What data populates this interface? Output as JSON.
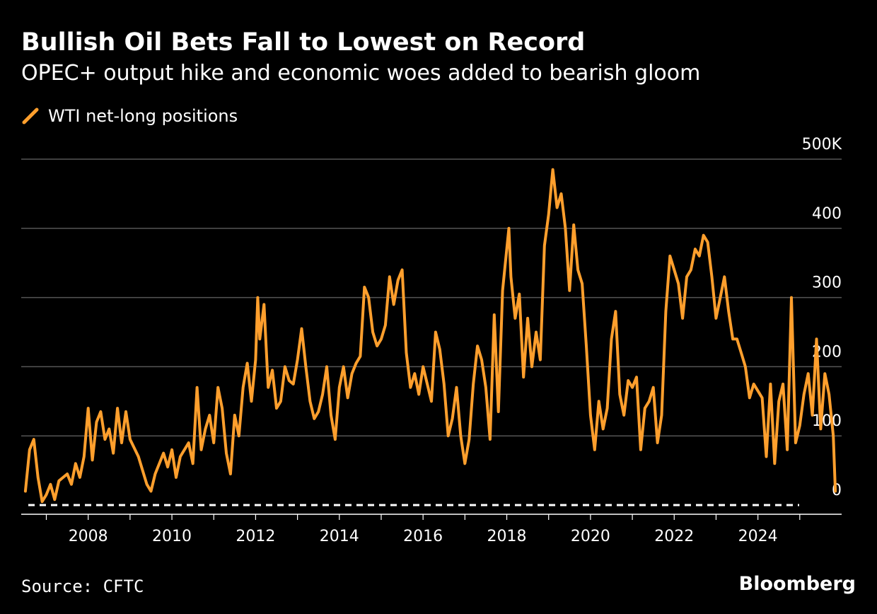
{
  "title": "Bullish Oil Bets Fall to Lowest on Record",
  "subtitle": "OPEC+ output hike and economic woes added to bearish gloom",
  "source": "Source: CFTC",
  "brand": "Bloomberg",
  "colors": {
    "series": "#ff9f2d",
    "background": "#000000",
    "grid": "#555555",
    "text": "#ffffff",
    "baseline": "#ffffff"
  },
  "legend_icon": "diagonal-line-swatch",
  "chart_data": {
    "type": "line",
    "title": "Bullish Oil Bets Fall to Lowest on Record",
    "subtitle": "OPEC+ output hike and economic woes added to bearish gloom",
    "xlabel": "",
    "ylabel": "",
    "xlim": [
      2006.4,
      2026.0
    ],
    "ylim": [
      0,
      500
    ],
    "y_unit": "K",
    "x_ticks": [
      2008,
      2010,
      2012,
      2014,
      2016,
      2018,
      2020,
      2022,
      2024
    ],
    "y_ticks": [
      {
        "value": 0,
        "label": "0"
      },
      {
        "value": 100,
        "label": "100"
      },
      {
        "value": 200,
        "label": "200"
      },
      {
        "value": 300,
        "label": "300"
      },
      {
        "value": 400,
        "label": "400"
      },
      {
        "value": 500,
        "label": "500K"
      }
    ],
    "grid": true,
    "legend_position": "top-left",
    "reference_line": {
      "value": 0,
      "style": "dashed"
    },
    "series": [
      {
        "name": "WTI net-long positions",
        "color": "#ff9f2d",
        "points": [
          [
            2006.5,
            20
          ],
          [
            2006.6,
            80
          ],
          [
            2006.7,
            95
          ],
          [
            2006.8,
            40
          ],
          [
            2006.9,
            5
          ],
          [
            2007.0,
            15
          ],
          [
            2007.1,
            30
          ],
          [
            2007.2,
            8
          ],
          [
            2007.3,
            35
          ],
          [
            2007.5,
            45
          ],
          [
            2007.6,
            30
          ],
          [
            2007.7,
            60
          ],
          [
            2007.8,
            40
          ],
          [
            2007.9,
            70
          ],
          [
            2008.0,
            140
          ],
          [
            2008.1,
            65
          ],
          [
            2008.2,
            120
          ],
          [
            2008.3,
            135
          ],
          [
            2008.4,
            95
          ],
          [
            2008.5,
            110
          ],
          [
            2008.6,
            75
          ],
          [
            2008.7,
            140
          ],
          [
            2008.8,
            90
          ],
          [
            2008.9,
            135
          ],
          [
            2009.0,
            95
          ],
          [
            2009.2,
            70
          ],
          [
            2009.4,
            30
          ],
          [
            2009.5,
            20
          ],
          [
            2009.6,
            45
          ],
          [
            2009.8,
            75
          ],
          [
            2009.9,
            55
          ],
          [
            2010.0,
            80
          ],
          [
            2010.1,
            40
          ],
          [
            2010.2,
            70
          ],
          [
            2010.4,
            90
          ],
          [
            2010.5,
            60
          ],
          [
            2010.6,
            170
          ],
          [
            2010.7,
            80
          ],
          [
            2010.8,
            110
          ],
          [
            2010.9,
            130
          ],
          [
            2011.0,
            90
          ],
          [
            2011.1,
            170
          ],
          [
            2011.2,
            140
          ],
          [
            2011.3,
            75
          ],
          [
            2011.4,
            45
          ],
          [
            2011.5,
            130
          ],
          [
            2011.6,
            100
          ],
          [
            2011.7,
            170
          ],
          [
            2011.8,
            205
          ],
          [
            2011.9,
            150
          ],
          [
            2012.0,
            210
          ],
          [
            2012.05,
            300
          ],
          [
            2012.1,
            240
          ],
          [
            2012.2,
            290
          ],
          [
            2012.3,
            170
          ],
          [
            2012.4,
            195
          ],
          [
            2012.5,
            140
          ],
          [
            2012.6,
            150
          ],
          [
            2012.7,
            200
          ],
          [
            2012.8,
            180
          ],
          [
            2012.9,
            175
          ],
          [
            2013.0,
            210
          ],
          [
            2013.1,
            255
          ],
          [
            2013.2,
            200
          ],
          [
            2013.3,
            150
          ],
          [
            2013.4,
            125
          ],
          [
            2013.5,
            135
          ],
          [
            2013.6,
            160
          ],
          [
            2013.7,
            200
          ],
          [
            2013.8,
            130
          ],
          [
            2013.9,
            95
          ],
          [
            2014.0,
            170
          ],
          [
            2014.1,
            200
          ],
          [
            2014.2,
            155
          ],
          [
            2014.3,
            190
          ],
          [
            2014.4,
            205
          ],
          [
            2014.5,
            215
          ],
          [
            2014.6,
            315
          ],
          [
            2014.7,
            300
          ],
          [
            2014.8,
            250
          ],
          [
            2014.9,
            230
          ],
          [
            2015.0,
            240
          ],
          [
            2015.1,
            260
          ],
          [
            2015.2,
            330
          ],
          [
            2015.3,
            290
          ],
          [
            2015.4,
            325
          ],
          [
            2015.5,
            340
          ],
          [
            2015.6,
            220
          ],
          [
            2015.7,
            170
          ],
          [
            2015.8,
            190
          ],
          [
            2015.9,
            160
          ],
          [
            2016.0,
            200
          ],
          [
            2016.1,
            175
          ],
          [
            2016.2,
            150
          ],
          [
            2016.3,
            250
          ],
          [
            2016.4,
            225
          ],
          [
            2016.5,
            175
          ],
          [
            2016.6,
            100
          ],
          [
            2016.7,
            125
          ],
          [
            2016.8,
            170
          ],
          [
            2016.9,
            100
          ],
          [
            2017.0,
            60
          ],
          [
            2017.1,
            95
          ],
          [
            2017.2,
            175
          ],
          [
            2017.3,
            230
          ],
          [
            2017.4,
            210
          ],
          [
            2017.5,
            170
          ],
          [
            2017.6,
            95
          ],
          [
            2017.7,
            275
          ],
          [
            2017.8,
            135
          ],
          [
            2017.9,
            310
          ],
          [
            2018.0,
            370
          ],
          [
            2018.05,
            400
          ],
          [
            2018.1,
            330
          ],
          [
            2018.2,
            270
          ],
          [
            2018.3,
            305
          ],
          [
            2018.4,
            185
          ],
          [
            2018.5,
            270
          ],
          [
            2018.6,
            200
          ],
          [
            2018.7,
            250
          ],
          [
            2018.8,
            210
          ],
          [
            2018.9,
            375
          ],
          [
            2019.0,
            420
          ],
          [
            2019.1,
            485
          ],
          [
            2019.2,
            430
          ],
          [
            2019.3,
            450
          ],
          [
            2019.4,
            400
          ],
          [
            2019.5,
            310
          ],
          [
            2019.6,
            405
          ],
          [
            2019.7,
            340
          ],
          [
            2019.8,
            320
          ],
          [
            2019.9,
            230
          ],
          [
            2020.0,
            130
          ],
          [
            2020.1,
            80
          ],
          [
            2020.2,
            150
          ],
          [
            2020.3,
            110
          ],
          [
            2020.4,
            140
          ],
          [
            2020.5,
            240
          ],
          [
            2020.6,
            280
          ],
          [
            2020.7,
            160
          ],
          [
            2020.8,
            130
          ],
          [
            2020.9,
            180
          ],
          [
            2021.0,
            170
          ],
          [
            2021.1,
            185
          ],
          [
            2021.2,
            80
          ],
          [
            2021.3,
            140
          ],
          [
            2021.4,
            150
          ],
          [
            2021.5,
            170
          ],
          [
            2021.6,
            90
          ],
          [
            2021.7,
            130
          ],
          [
            2021.8,
            280
          ],
          [
            2021.9,
            360
          ],
          [
            2022.0,
            340
          ],
          [
            2022.1,
            320
          ],
          [
            2022.2,
            270
          ],
          [
            2022.3,
            330
          ],
          [
            2022.4,
            340
          ],
          [
            2022.5,
            370
          ],
          [
            2022.6,
            360
          ],
          [
            2022.7,
            390
          ],
          [
            2022.8,
            380
          ],
          [
            2022.9,
            330
          ],
          [
            2023.0,
            270
          ],
          [
            2023.1,
            300
          ],
          [
            2023.2,
            330
          ],
          [
            2023.3,
            280
          ],
          [
            2023.4,
            240
          ],
          [
            2023.5,
            240
          ],
          [
            2023.6,
            220
          ],
          [
            2023.7,
            200
          ],
          [
            2023.8,
            155
          ],
          [
            2023.9,
            175
          ],
          [
            2024.0,
            165
          ],
          [
            2024.1,
            155
          ],
          [
            2024.2,
            70
          ],
          [
            2024.3,
            175
          ],
          [
            2024.4,
            60
          ],
          [
            2024.5,
            150
          ],
          [
            2024.6,
            175
          ],
          [
            2024.7,
            80
          ],
          [
            2024.8,
            300
          ],
          [
            2024.9,
            90
          ],
          [
            2025.0,
            115
          ],
          [
            2025.1,
            160
          ],
          [
            2025.2,
            190
          ],
          [
            2025.3,
            130
          ],
          [
            2025.4,
            240
          ],
          [
            2025.5,
            110
          ],
          [
            2025.6,
            190
          ],
          [
            2025.7,
            160
          ],
          [
            2025.8,
            100
          ],
          [
            2025.85,
            20
          ]
        ]
      }
    ]
  }
}
